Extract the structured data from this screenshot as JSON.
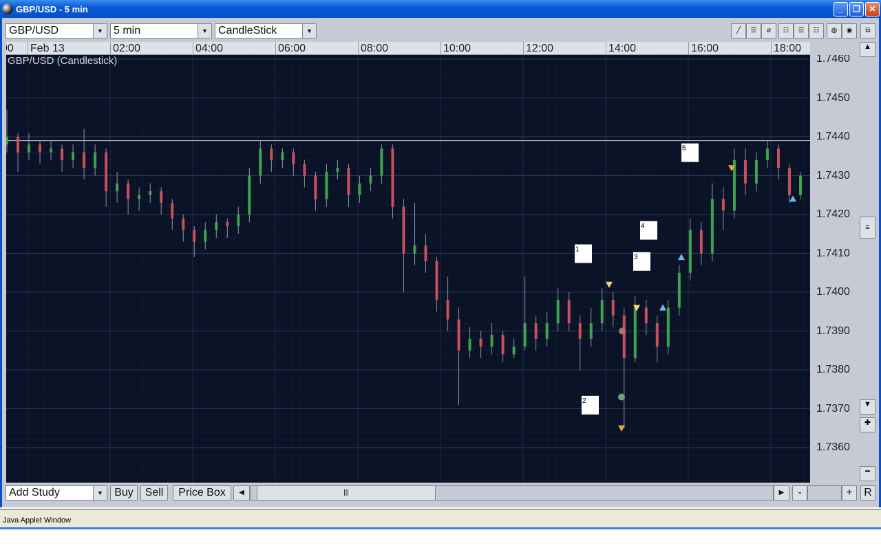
{
  "window": {
    "title": "GBP/USD - 5 min",
    "minimize": "_",
    "restore": "❐",
    "close": "✕"
  },
  "toolbar": {
    "symbol": "GBP/USD",
    "interval": "5 min",
    "chart_type": "CandleStick",
    "tools": [
      "line-tool-icon",
      "horizontal-line-icon",
      "fibonacci-icon",
      "grid1-icon",
      "grid2-icon",
      "grid3-icon",
      "color1-icon",
      "color2-icon"
    ],
    "detach": "⧉"
  },
  "bottom": {
    "study": "Add Study",
    "buy": "Buy",
    "sell": "Sell",
    "price_box": "Price Box",
    "zoom_out": "-",
    "zoom_in": "+",
    "reset": "R"
  },
  "status": {
    "text": "Java Applet Window"
  },
  "colors": {
    "background": "#0a1226",
    "up": "#3fa34d",
    "down": "#c8505a",
    "grid": "#1c2744"
  },
  "chart_data": {
    "type": "candlestick",
    "title": "GBP/USD (Candlestick)",
    "x_ticks": [
      "00",
      "Feb 13",
      "02:00",
      "04:00",
      "06:00",
      "08:00",
      "10:00",
      "12:00",
      "14:00",
      "16:00",
      "18:00"
    ],
    "y_ticks": [
      "1.7460",
      "1.7450",
      "1.7440",
      "1.7430",
      "1.7420",
      "1.7410",
      "1.7400",
      "1.7390",
      "1.7380",
      "1.7370",
      "1.7360"
    ],
    "ylim": [
      1.735,
      1.7462
    ],
    "grid": true,
    "horizontal_line": 1.7439,
    "candles": [
      [
        1.7438,
        1.7447,
        1.7436,
        1.744
      ],
      [
        1.744,
        1.7441,
        1.7431,
        1.7436
      ],
      [
        1.7436,
        1.7441,
        1.7434,
        1.7438
      ],
      [
        1.7438,
        1.7439,
        1.7433,
        1.7436
      ],
      [
        1.7436,
        1.7439,
        1.7434,
        1.7437
      ],
      [
        1.7437,
        1.7438,
        1.7431,
        1.7434
      ],
      [
        1.7434,
        1.7438,
        1.7432,
        1.7436
      ],
      [
        1.7436,
        1.7442,
        1.7429,
        1.7432
      ],
      [
        1.7432,
        1.7438,
        1.743,
        1.7436
      ],
      [
        1.7436,
        1.7437,
        1.7422,
        1.7426
      ],
      [
        1.7426,
        1.7431,
        1.7423,
        1.7428
      ],
      [
        1.7428,
        1.7429,
        1.742,
        1.7424
      ],
      [
        1.7424,
        1.7427,
        1.7421,
        1.7425
      ],
      [
        1.7425,
        1.7428,
        1.7423,
        1.7426
      ],
      [
        1.7426,
        1.7427,
        1.742,
        1.7423
      ],
      [
        1.7423,
        1.7424,
        1.7416,
        1.7419
      ],
      [
        1.7419,
        1.742,
        1.7413,
        1.7416
      ],
      [
        1.7416,
        1.7417,
        1.7409,
        1.7413
      ],
      [
        1.7413,
        1.7418,
        1.7411,
        1.7416
      ],
      [
        1.7416,
        1.742,
        1.7414,
        1.7418
      ],
      [
        1.7418,
        1.7419,
        1.7414,
        1.7417
      ],
      [
        1.7417,
        1.7422,
        1.7415,
        1.742
      ],
      [
        1.742,
        1.7432,
        1.7418,
        1.743
      ],
      [
        1.743,
        1.7439,
        1.7428,
        1.7437
      ],
      [
        1.7437,
        1.7438,
        1.7431,
        1.7434
      ],
      [
        1.7434,
        1.7437,
        1.7432,
        1.7436
      ],
      [
        1.7436,
        1.7437,
        1.743,
        1.7433
      ],
      [
        1.7433,
        1.7434,
        1.7427,
        1.743
      ],
      [
        1.743,
        1.7431,
        1.7421,
        1.7424
      ],
      [
        1.7424,
        1.7433,
        1.7422,
        1.7431
      ],
      [
        1.7431,
        1.7434,
        1.7429,
        1.7432
      ],
      [
        1.7432,
        1.7433,
        1.7422,
        1.7425
      ],
      [
        1.7425,
        1.743,
        1.7423,
        1.7428
      ],
      [
        1.7428,
        1.7432,
        1.7426,
        1.743
      ],
      [
        1.743,
        1.7438,
        1.7428,
        1.7437
      ],
      [
        1.7437,
        1.7438,
        1.7419,
        1.7422
      ],
      [
        1.7422,
        1.7424,
        1.74,
        1.741
      ],
      [
        1.741,
        1.7423,
        1.7407,
        1.7412
      ],
      [
        1.7412,
        1.7415,
        1.7405,
        1.7408
      ],
      [
        1.7408,
        1.7409,
        1.7395,
        1.7398
      ],
      [
        1.7398,
        1.7404,
        1.739,
        1.7393
      ],
      [
        1.7393,
        1.7396,
        1.7371,
        1.7385
      ],
      [
        1.7385,
        1.7391,
        1.7383,
        1.7388
      ],
      [
        1.7388,
        1.739,
        1.7383,
        1.7386
      ],
      [
        1.7386,
        1.7392,
        1.7384,
        1.7389
      ],
      [
        1.7389,
        1.739,
        1.7382,
        1.7384
      ],
      [
        1.7384,
        1.7388,
        1.7383,
        1.7386
      ],
      [
        1.7386,
        1.7404,
        1.7385,
        1.7392
      ],
      [
        1.7392,
        1.7394,
        1.7385,
        1.7388
      ],
      [
        1.7388,
        1.7395,
        1.7386,
        1.7392
      ],
      [
        1.7392,
        1.7401,
        1.739,
        1.7398
      ],
      [
        1.7398,
        1.74,
        1.739,
        1.7392
      ],
      [
        1.7392,
        1.7394,
        1.738,
        1.7388
      ],
      [
        1.7388,
        1.7396,
        1.7386,
        1.7392
      ],
      [
        1.7392,
        1.7401,
        1.739,
        1.7398
      ],
      [
        1.7398,
        1.74,
        1.7391,
        1.7394
      ],
      [
        1.7394,
        1.7396,
        1.7365,
        1.7383
      ],
      [
        1.7383,
        1.7399,
        1.7382,
        1.7396
      ],
      [
        1.7396,
        1.7398,
        1.7389,
        1.7392
      ],
      [
        1.7392,
        1.7394,
        1.7382,
        1.7386
      ],
      [
        1.7386,
        1.7398,
        1.7384,
        1.7396
      ],
      [
        1.7396,
        1.7407,
        1.7394,
        1.7405
      ],
      [
        1.7405,
        1.7419,
        1.7403,
        1.7416
      ],
      [
        1.7416,
        1.7418,
        1.7407,
        1.741
      ],
      [
        1.741,
        1.7428,
        1.7408,
        1.7424
      ],
      [
        1.7424,
        1.7427,
        1.7416,
        1.7421
      ],
      [
        1.7421,
        1.7437,
        1.7419,
        1.7434
      ],
      [
        1.7434,
        1.7437,
        1.7425,
        1.7428
      ],
      [
        1.7428,
        1.7436,
        1.7426,
        1.7434
      ],
      [
        1.7434,
        1.7439,
        1.7432,
        1.7437
      ],
      [
        1.7437,
        1.7438,
        1.7429,
        1.7432
      ],
      [
        1.7432,
        1.7433,
        1.7423,
        1.7425
      ],
      [
        1.7425,
        1.7431,
        1.7424,
        1.743
      ]
    ],
    "annotations": [
      {
        "label": "1",
        "time": "13:15",
        "price": 1.741
      },
      {
        "label": "2",
        "time": "13:25",
        "price": 1.7371
      },
      {
        "label": "3",
        "time": "14:40",
        "price": 1.7408
      },
      {
        "label": "4",
        "time": "14:50",
        "price": 1.7416
      },
      {
        "label": "5",
        "time": "15:50",
        "price": 1.7436
      }
    ],
    "markers": [
      {
        "shape": "triangle-down",
        "color": "#f0d870",
        "time": "14:05",
        "price": 1.7402
      },
      {
        "shape": "triangle-down",
        "color": "#f0d870",
        "time": "14:45",
        "price": 1.7396
      },
      {
        "shape": "triangle-down",
        "color": "#f0a040",
        "time": "14:23",
        "price": 1.7365
      },
      {
        "shape": "triangle-down",
        "color": "#f0a040",
        "time": "17:03",
        "price": 1.7432
      },
      {
        "shape": "triangle-up",
        "color": "#70b8f0",
        "time": "15:23",
        "price": 1.7396
      },
      {
        "shape": "triangle-up",
        "color": "#70b8f0",
        "time": "15:50",
        "price": 1.7409
      },
      {
        "shape": "triangle-up",
        "color": "#70b8f0",
        "time": "18:32",
        "price": 1.7424
      },
      {
        "shape": "circle",
        "color": "#b07070",
        "time": "14:24",
        "price": 1.739
      },
      {
        "shape": "circle",
        "color": "#70a070",
        "time": "14:23",
        "price": 1.7373
      }
    ]
  }
}
